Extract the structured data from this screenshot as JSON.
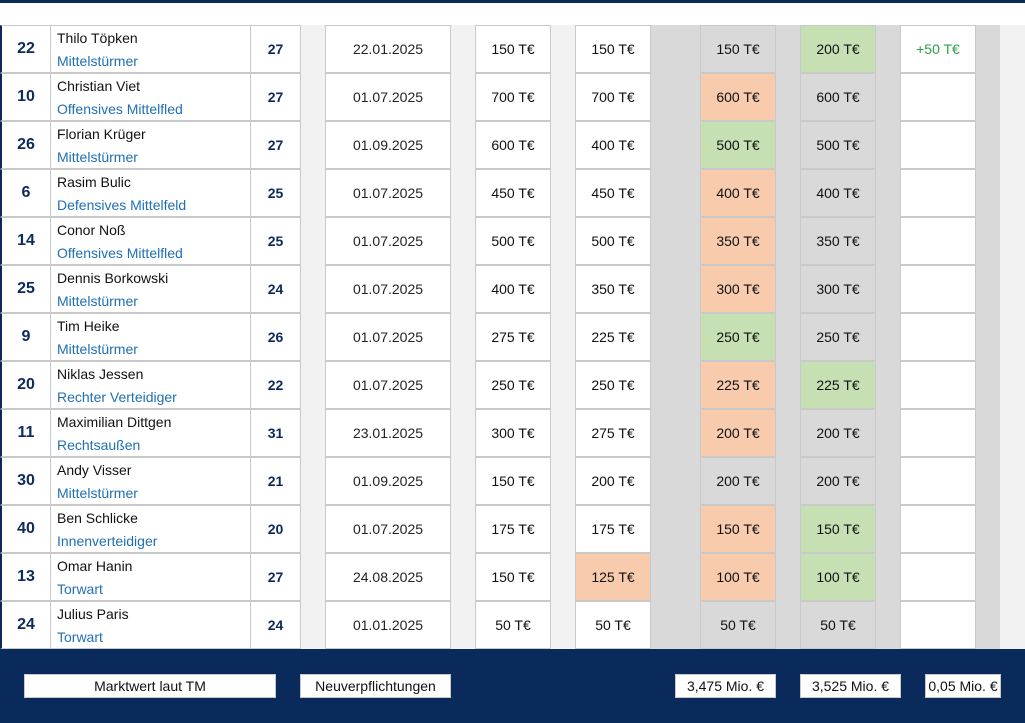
{
  "colors": {
    "navy": "#0b2a5c",
    "orange": "#f8cbad",
    "green": "#c6e0b4",
    "gray": "#d9d9d9",
    "position_blue": "#1f6fb5",
    "diff_green": "#2aa34a"
  },
  "rows": [
    {
      "number": "22",
      "name": "Thilo Töpken",
      "position": "Mittelstürmer",
      "age": "27",
      "date": "22.01.2025",
      "v1": "150 T€",
      "v2": "150 T€",
      "v2_color": "white",
      "v3": "150 T€",
      "v3_color": "gray",
      "v4": "200 T€",
      "v4_color": "green",
      "diff": "+50 T€"
    },
    {
      "number": "10",
      "name": "Christian Viet",
      "position": "Offensives Mittelfled",
      "age": "27",
      "date": "01.07.2025",
      "v1": "700 T€",
      "v2": "700 T€",
      "v2_color": "white",
      "v3": "600 T€",
      "v3_color": "orange",
      "v4": "600 T€",
      "v4_color": "gray",
      "diff": ""
    },
    {
      "number": "26",
      "name": "Florian Krüger",
      "position": "Mittelstürmer",
      "age": "27",
      "date": "01.09.2025",
      "v1": "600 T€",
      "v2": "400 T€",
      "v2_color": "white",
      "v3": "500 T€",
      "v3_color": "green",
      "v4": "500 T€",
      "v4_color": "gray",
      "diff": ""
    },
    {
      "number": "6",
      "name": "Rasim Bulic",
      "position": "Defensives Mittelfeld",
      "age": "25",
      "date": "01.07.2025",
      "v1": "450 T€",
      "v2": "450 T€",
      "v2_color": "white",
      "v3": "400 T€",
      "v3_color": "orange",
      "v4": "400 T€",
      "v4_color": "gray",
      "diff": ""
    },
    {
      "number": "14",
      "name": "Conor Noß",
      "position": "Offensives Mittelfled",
      "age": "25",
      "date": "01.07.2025",
      "v1": "500 T€",
      "v2": "500 T€",
      "v2_color": "white",
      "v3": "350 T€",
      "v3_color": "orange",
      "v4": "350 T€",
      "v4_color": "gray",
      "diff": ""
    },
    {
      "number": "25",
      "name": "Dennis Borkowski",
      "position": "Mittelstürmer",
      "age": "24",
      "date": "01.07.2025",
      "v1": "400 T€",
      "v2": "350 T€",
      "v2_color": "white",
      "v3": "300 T€",
      "v3_color": "orange",
      "v4": "300 T€",
      "v4_color": "gray",
      "diff": ""
    },
    {
      "number": "9",
      "name": "Tim Heike",
      "position": "Mittelstürmer",
      "age": "26",
      "date": "01.07.2025",
      "v1": "275 T€",
      "v2": "225 T€",
      "v2_color": "white",
      "v3": "250 T€",
      "v3_color": "green",
      "v4": "250 T€",
      "v4_color": "gray",
      "diff": ""
    },
    {
      "number": "20",
      "name": "Niklas Jessen",
      "position": "Rechter Verteidiger",
      "age": "22",
      "date": "01.07.2025",
      "v1": "250 T€",
      "v2": "250 T€",
      "v2_color": "white",
      "v3": "225 T€",
      "v3_color": "orange",
      "v4": "225 T€",
      "v4_color": "green",
      "diff": ""
    },
    {
      "number": "11",
      "name": "Maximilian Dittgen",
      "position": "Rechtsaußen",
      "age": "31",
      "date": "23.01.2025",
      "v1": "300 T€",
      "v2": "275 T€",
      "v2_color": "white",
      "v3": "200 T€",
      "v3_color": "orange",
      "v4": "200 T€",
      "v4_color": "gray",
      "diff": ""
    },
    {
      "number": "30",
      "name": "Andy Visser",
      "position": "Mittelstürmer",
      "age": "21",
      "date": "01.09.2025",
      "v1": "150 T€",
      "v2": "200 T€",
      "v2_color": "white",
      "v3": "200 T€",
      "v3_color": "gray",
      "v4": "200 T€",
      "v4_color": "gray",
      "diff": ""
    },
    {
      "number": "40",
      "name": "Ben Schlicke",
      "position": "Innenverteidiger",
      "age": "20",
      "date": "01.07.2025",
      "v1": "175 T€",
      "v2": "175 T€",
      "v2_color": "white",
      "v3": "150 T€",
      "v3_color": "orange",
      "v4": "150 T€",
      "v4_color": "green",
      "diff": ""
    },
    {
      "number": "13",
      "name": "Omar Hanin",
      "position": "Torwart",
      "age": "27",
      "date": "24.08.2025",
      "v1": "150 T€",
      "v2": "125 T€",
      "v2_color": "orange",
      "v3": "100 T€",
      "v3_color": "orange",
      "v4": "100 T€",
      "v4_color": "green",
      "diff": ""
    },
    {
      "number": "24",
      "name": "Julius Paris",
      "position": "Torwart",
      "age": "24",
      "date": "01.01.2025",
      "v1": "50 T€",
      "v2": "50 T€",
      "v2_color": "white",
      "v3": "50 T€",
      "v3_color": "gray",
      "v4": "50 T€",
      "v4_color": "gray",
      "diff": ""
    }
  ],
  "footer": {
    "market_value_label": "Marktwert laut TM",
    "new_signings_label": "Neuverpflichtungen",
    "total_1": "3,475 Mio. €",
    "total_2": "3,525 Mio. €",
    "total_diff": "0,05 Mio. €"
  }
}
